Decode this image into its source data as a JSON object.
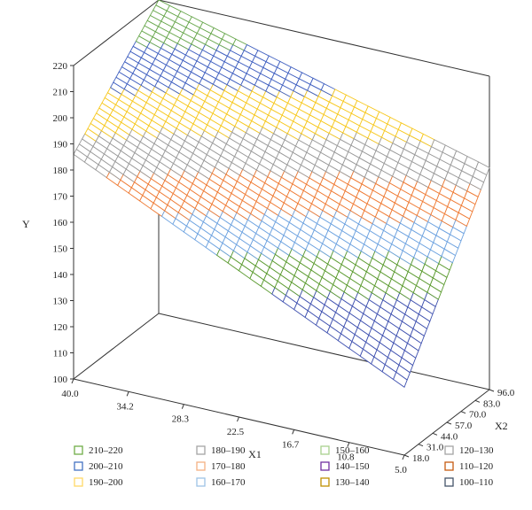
{
  "chart_data": {
    "type": "surface3d",
    "title": "",
    "xlabel": "X1",
    "ylabel": "X2",
    "zlabel": "Y",
    "x1_ticks": [
      "40.0",
      "34.2",
      "28.3",
      "22.5",
      "16.7",
      "10.8",
      "5.0"
    ],
    "x2_ticks": [
      "18.0",
      "31.0",
      "44.0",
      "57.0",
      "70.0",
      "83.0",
      "96.0"
    ],
    "y_ticks": [
      "100",
      "110",
      "120",
      "130",
      "140",
      "150",
      "160",
      "170",
      "180",
      "190",
      "200",
      "210",
      "220"
    ],
    "x1_range": [
      5.0,
      40.0
    ],
    "x2_range": [
      18.0,
      96.0
    ],
    "y_range": [
      100,
      220
    ],
    "corner_values": [
      {
        "x1": 40.0,
        "x2": 18.0,
        "y": 186
      },
      {
        "x1": 40.0,
        "x2": 96.0,
        "y": 220
      },
      {
        "x1": 5.0,
        "x2": 18.0,
        "y": 126
      },
      {
        "x1": 5.0,
        "x2": 96.0,
        "y": 185
      }
    ],
    "grid_divisions": 30,
    "legend": [
      {
        "label": "210–220",
        "color": "#70ad47"
      },
      {
        "label": "180–190",
        "color": "#a5a5a5"
      },
      {
        "label": "150–160",
        "color": "#a9d18e"
      },
      {
        "label": "120–130",
        "color": "#a5a5a5"
      },
      {
        "label": "200–210",
        "color": "#4472c4"
      },
      {
        "label": "170–180",
        "color": "#f4b183"
      },
      {
        "label": "140–150",
        "color": "#7030a0"
      },
      {
        "label": "110–120",
        "color": "#c55a11"
      },
      {
        "label": "190–200",
        "color": "#ffd966"
      },
      {
        "label": "160–170",
        "color": "#9dc3e6"
      },
      {
        "label": "130–140",
        "color": "#bf9000"
      },
      {
        "label": "100–110",
        "color": "#44546a"
      }
    ],
    "bands": [
      {
        "min": 120,
        "max": 130,
        "color": "#4052b0"
      },
      {
        "min": 130,
        "max": 140,
        "color": "#4052b0"
      },
      {
        "min": 140,
        "max": 150,
        "color": "#4052b0"
      },
      {
        "min": 150,
        "max": 160,
        "color": "#5a9a2e"
      },
      {
        "min": 160,
        "max": 170,
        "color": "#6ea3e0"
      },
      {
        "min": 170,
        "max": 180,
        "color": "#ef7a33"
      },
      {
        "min": 180,
        "max": 190,
        "color": "#9a9a9a"
      },
      {
        "min": 190,
        "max": 200,
        "color": "#f7c81e"
      },
      {
        "min": 200,
        "max": 210,
        "color": "#4060c0"
      },
      {
        "min": 210,
        "max": 220,
        "color": "#6aa84f"
      }
    ]
  }
}
